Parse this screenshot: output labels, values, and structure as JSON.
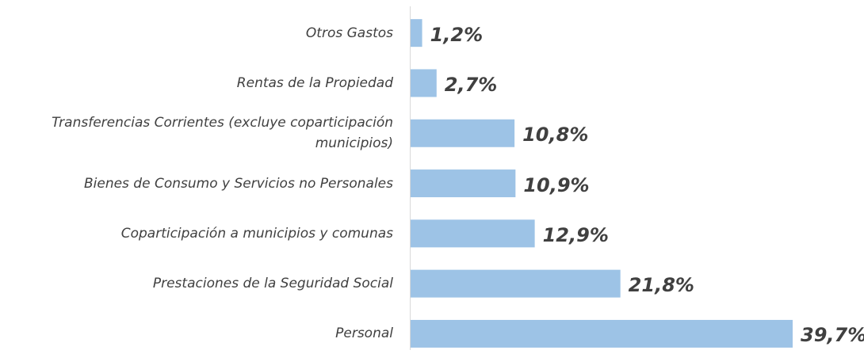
{
  "chart_data": {
    "type": "bar",
    "orientation": "horizontal",
    "categories": [
      "Otros Gastos",
      "Rentas de la Propiedad",
      "Transferencias Corrientes (excluye coparticipación municipios)",
      "Bienes de Consumo y Servicios no Personales",
      "Coparticipación a municipios y comunas",
      "Prestaciones de la Seguridad Social",
      "Personal"
    ],
    "values": [
      1.2,
      2.7,
      10.8,
      10.9,
      12.9,
      21.8,
      39.7
    ],
    "value_labels": [
      "1,2%",
      "2,7%",
      "10,8%",
      "10,9%",
      "12,9%",
      "21,8%",
      "39,7%"
    ],
    "color": "#9dc3e6"
  }
}
